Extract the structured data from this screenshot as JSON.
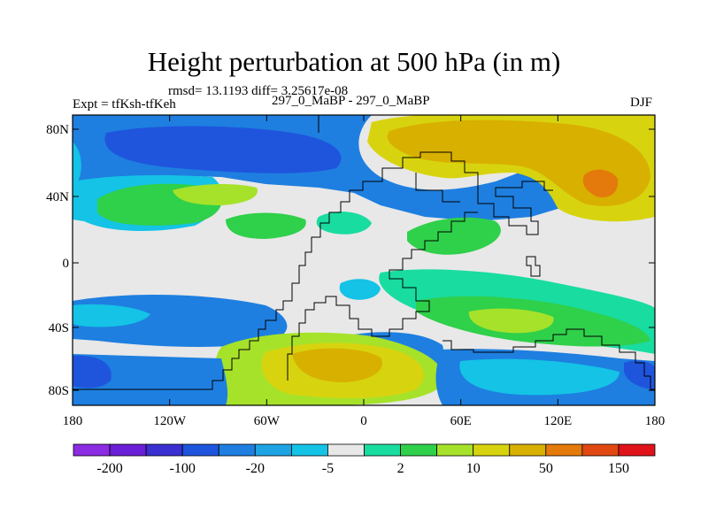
{
  "title": "Height perturbation at 500 hPa (in m)",
  "stats_line": "rmsd= 13.1193 diff= 3.25617e-08",
  "left_label": "Expt = tfKsh-tfKeh",
  "center_label": "297_0_MaBP - 297_0_MaBP",
  "right_label": "DJF",
  "lat_ticks": [
    "80N",
    "40N",
    "0",
    "40S",
    "80S"
  ],
  "lon_ticks": [
    "180",
    "120W",
    "60W",
    "0",
    "60E",
    "120E",
    "180"
  ],
  "colorbar": {
    "colors": [
      "#8b2be2",
      "#6a1fd6",
      "#3a2fd1",
      "#1f55dd",
      "#1e7fe0",
      "#1ea4e4",
      "#14c3e6",
      "#e8e8e8",
      "#19dca0",
      "#2fd04a",
      "#a6e22a",
      "#d7d40f",
      "#d8b000",
      "#e47a0b",
      "#e04a12",
      "#e0121a"
    ],
    "labels": [
      "-200",
      "-100",
      "-20",
      "-5",
      "2",
      "10",
      "50",
      "150"
    ]
  },
  "map_colors": {
    "background": "#e8e8e8",
    "strong_neg": "#1f55dd",
    "neg": "#1e7fe0",
    "weak_neg": "#14c3e6",
    "weak_pos": "#19dca0",
    "pos": "#2fd04a",
    "pos2": "#a6e22a",
    "pos3": "#d7d40f",
    "pos4": "#d8b000",
    "peak": "#e47a0b"
  }
}
